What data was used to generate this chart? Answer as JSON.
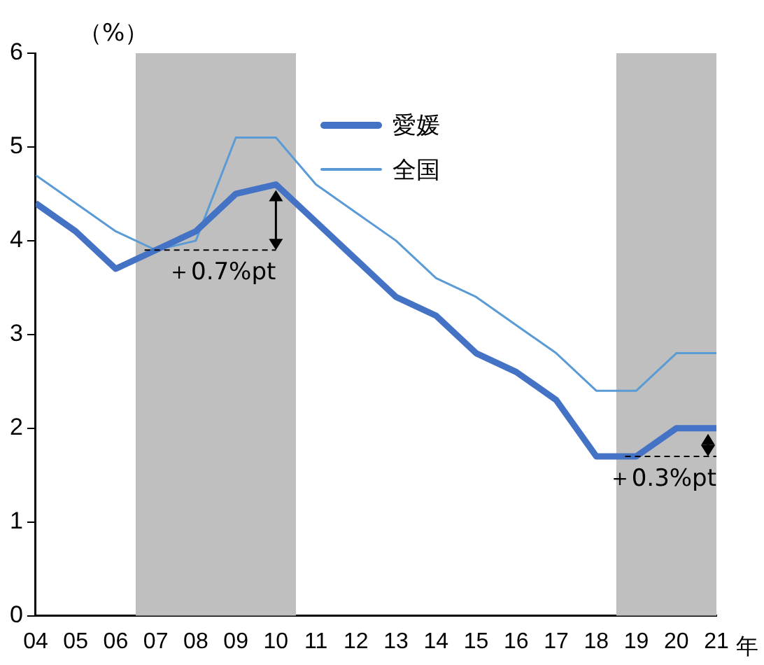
{
  "chart_data": {
    "type": "line",
    "ylabel": "（%）",
    "xlabel": "年",
    "x": [
      2004,
      2005,
      2006,
      2007,
      2008,
      2009,
      2010,
      2011,
      2012,
      2013,
      2014,
      2015,
      2016,
      2017,
      2018,
      2019,
      2020,
      2021
    ],
    "series": [
      {
        "name": "愛媛",
        "color": "#4472c4",
        "values": [
          4.4,
          4.1,
          3.7,
          3.9,
          4.1,
          4.5,
          4.6,
          4.2,
          3.8,
          3.4,
          3.2,
          2.8,
          2.6,
          2.3,
          1.7,
          1.7,
          2.0,
          2.0
        ]
      },
      {
        "name": "全国",
        "color": "#5b9bd5",
        "values": [
          4.7,
          4.4,
          4.1,
          3.9,
          4.0,
          5.1,
          5.1,
          4.6,
          4.3,
          4.0,
          3.6,
          3.4,
          3.1,
          2.8,
          2.4,
          2.4,
          2.8,
          2.8
        ]
      }
    ],
    "xlim": [
      2004,
      2021
    ],
    "xticks": [
      {
        "value": 2004,
        "label": "04"
      },
      {
        "value": 2005,
        "label": "05"
      },
      {
        "value": 2006,
        "label": "06"
      },
      {
        "value": 2007,
        "label": "07"
      },
      {
        "value": 2008,
        "label": "08"
      },
      {
        "value": 2009,
        "label": "09"
      },
      {
        "value": 2010,
        "label": "10"
      },
      {
        "value": 2011,
        "label": "11"
      },
      {
        "value": 2012,
        "label": "12"
      },
      {
        "value": 2013,
        "label": "13"
      },
      {
        "value": 2014,
        "label": "14"
      },
      {
        "value": 2015,
        "label": "15"
      },
      {
        "value": 2016,
        "label": "16"
      },
      {
        "value": 2017,
        "label": "17"
      },
      {
        "value": 2018,
        "label": "18"
      },
      {
        "value": 2019,
        "label": "19"
      },
      {
        "value": 2020,
        "label": "20"
      },
      {
        "value": 2021,
        "label": "21"
      }
    ],
    "ylim": [
      0,
      6
    ],
    "yticks": [
      0,
      1,
      2,
      3,
      4,
      5,
      6
    ],
    "bands": [
      {
        "axis": "x",
        "from": 2006.5,
        "to": 2010.5,
        "color": "#bfbfbf"
      },
      {
        "axis": "x",
        "from": 2018.5,
        "to": 2021,
        "color": "#bfbfbf"
      }
    ],
    "annotations": [
      "＋0.7%pt",
      "＋0.3%pt"
    ],
    "grid": false,
    "legend": "top",
    "marker": "none",
    "line_style": "solid"
  }
}
